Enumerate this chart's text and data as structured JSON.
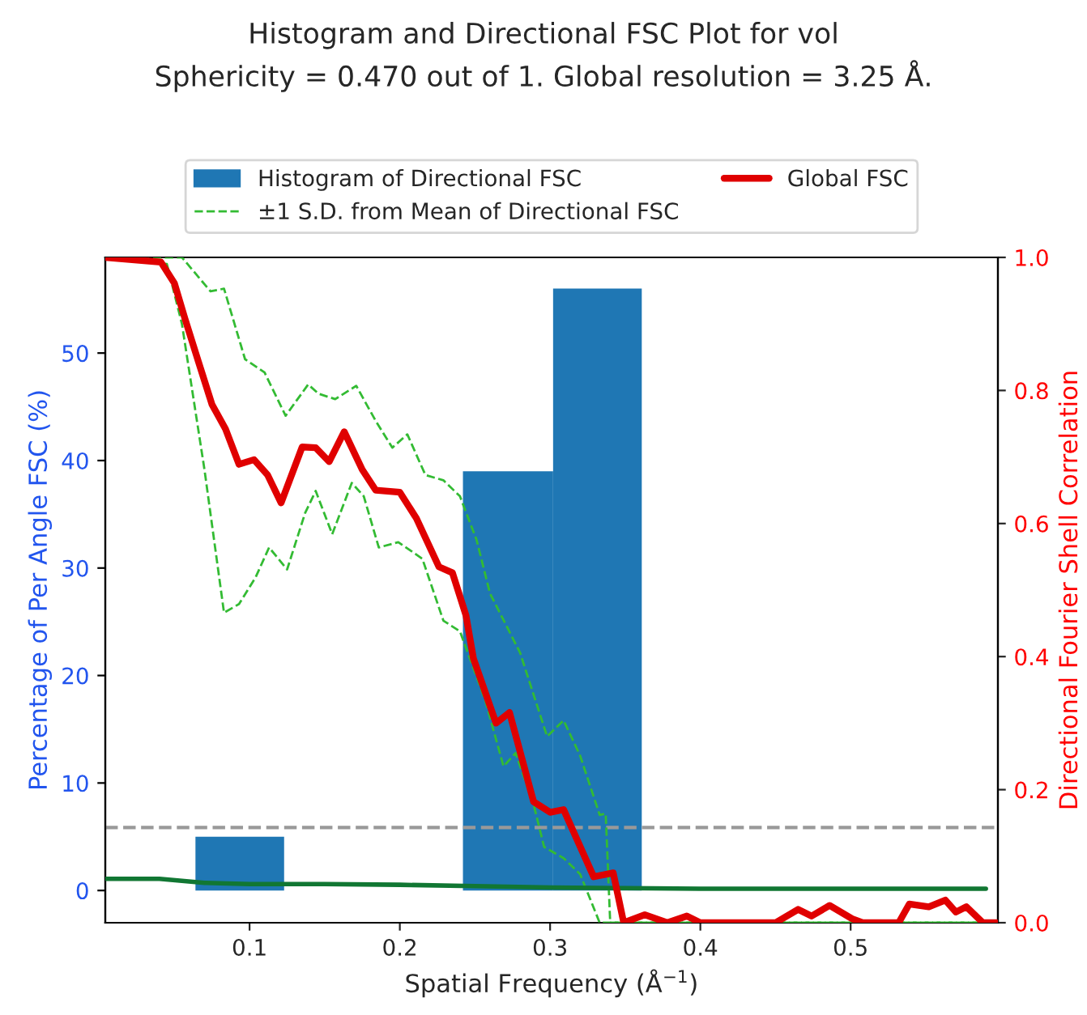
{
  "chart_data": {
    "type": "histogram",
    "title": "Histogram and Directional FSC Plot for vol",
    "subtitle": "Sphericity = 0.470 out of 1. Global resolution = 3.25 Å.",
    "xlabel": "Spatial Frequency (Å$^{−1}$)",
    "ylabel": "Percentage of Per Angle FSC (%)",
    "y2label": "Directional Fourier Shell Correlation",
    "bins": [
      0.064,
      0.123,
      0.242,
      0.302,
      0.361
    ],
    "series": [
      {
        "name": "Histogram of Directional FSC",
        "color": "#1f77b4",
        "values": [
          5,
          0,
          39,
          56
        ]
      },
      {
        "type": "line",
        "axis": "y2",
        "name": "±1 S.D. from Mean of Directional FSC",
        "color": "#33bb33",
        "line_style": "dashed",
        "x": [
          0.004,
          0.055,
          0.074,
          0.083,
          0.097,
          0.11,
          0.124,
          0.139,
          0.146,
          0.157,
          0.171,
          0.184,
          0.195,
          0.205,
          0.217,
          0.229,
          0.24,
          0.251,
          0.26,
          0.28,
          0.298,
          0.309,
          0.32,
          0.333,
          0.337,
          0.34,
          0.597
        ],
        "values": [
          1.0,
          1.0,
          0.949,
          0.953,
          0.847,
          0.827,
          0.762,
          0.809,
          0.795,
          0.787,
          0.807,
          0.754,
          0.714,
          0.734,
          0.673,
          0.665,
          0.641,
          0.576,
          0.495,
          0.406,
          0.28,
          0.304,
          0.251,
          0.162,
          0.164,
          0.0,
          0.0
        ]
      },
      {
        "type": "line",
        "axis": "y2",
        "color": "#33bb33",
        "line_style": "dashed",
        "x": [
          0.004,
          0.045,
          0.055,
          0.07,
          0.083,
          0.093,
          0.104,
          0.113,
          0.125,
          0.137,
          0.144,
          0.155,
          0.168,
          0.176,
          0.186,
          0.199,
          0.215,
          0.229,
          0.24,
          0.257,
          0.269,
          0.277,
          0.289,
          0.296,
          0.309,
          0.32,
          0.333,
          0.597
        ],
        "values": [
          1.0,
          0.99,
          0.9,
          0.681,
          0.466,
          0.479,
          0.519,
          0.564,
          0.531,
          0.616,
          0.649,
          0.584,
          0.661,
          0.641,
          0.564,
          0.572,
          0.547,
          0.454,
          0.438,
          0.333,
          0.235,
          0.255,
          0.178,
          0.114,
          0.097,
          0.073,
          0.0,
          0.0
        ]
      },
      {
        "type": "line",
        "axis": "y2",
        "color": "#117733",
        "line_style": "solid",
        "x": [
          0.004,
          0.04,
          0.07,
          0.1,
          0.15,
          0.2,
          0.25,
          0.3,
          0.35,
          0.4,
          0.5,
          0.59
        ],
        "values": [
          0.066,
          0.066,
          0.06,
          0.058,
          0.058,
          0.057,
          0.055,
          0.053,
          0.052,
          0.051,
          0.051,
          0.051
        ]
      },
      {
        "type": "line",
        "axis": "y2",
        "name": "Global FSC",
        "color": "#e00000",
        "line_style": "solid",
        "x": [
          0.004,
          0.041,
          0.05,
          0.057,
          0.066,
          0.075,
          0.084,
          0.093,
          0.103,
          0.112,
          0.121,
          0.135,
          0.144,
          0.153,
          0.163,
          0.175,
          0.184,
          0.2,
          0.211,
          0.226,
          0.235,
          0.244,
          0.249,
          0.264,
          0.273,
          0.289,
          0.3,
          0.309,
          0.329,
          0.342,
          0.349,
          0.363,
          0.378,
          0.391,
          0.4,
          0.45,
          0.465,
          0.474,
          0.486,
          0.501,
          0.508,
          0.532,
          0.539,
          0.552,
          0.563,
          0.57,
          0.577,
          0.588,
          0.597
        ],
        "values": [
          1.0,
          0.993,
          0.961,
          0.908,
          0.843,
          0.779,
          0.742,
          0.689,
          0.696,
          0.673,
          0.631,
          0.715,
          0.714,
          0.693,
          0.738,
          0.681,
          0.65,
          0.647,
          0.608,
          0.535,
          0.526,
          0.462,
          0.397,
          0.3,
          0.316,
          0.182,
          0.166,
          0.17,
          0.069,
          0.075,
          0.0,
          0.012,
          0.0,
          0.01,
          0.0,
          0.0,
          0.02,
          0.01,
          0.026,
          0.006,
          0.0,
          0.0,
          0.028,
          0.024,
          0.034,
          0.016,
          0.024,
          0.0,
          0.0
        ]
      }
    ],
    "ref_lines": [
      {
        "axis": "y2",
        "value": 0.143,
        "color": "#999999",
        "line_style": "dashed"
      }
    ],
    "xlim": [
      0.004,
      0.598
    ],
    "xticks": [
      0.1,
      0.2,
      0.3,
      0.4,
      0.5
    ],
    "ylim": [
      -3,
      58.9
    ],
    "yticks": [
      0,
      10,
      20,
      30,
      40,
      50
    ],
    "y2lim": [
      0,
      1.0
    ],
    "y2ticks": [
      {
        "value": 0,
        "label": "0.0"
      },
      {
        "value": 0.2,
        "label": "0.2"
      },
      {
        "value": 0.4,
        "label": "0.4"
      },
      {
        "value": 0.6,
        "label": "0.6"
      },
      {
        "value": 0.8,
        "label": "0.8"
      },
      {
        "value": 1.0,
        "label": "1.0"
      }
    ],
    "legend": "top",
    "grid": false
  }
}
